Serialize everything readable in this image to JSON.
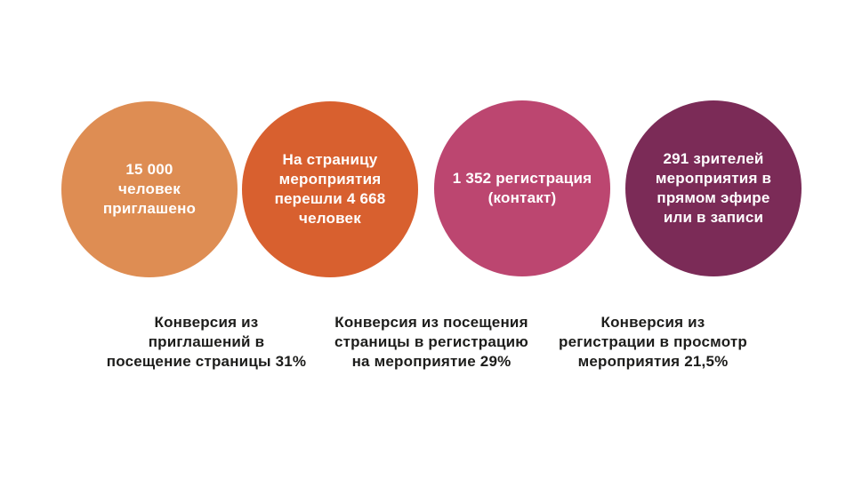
{
  "funnel": {
    "stages": [
      {
        "name": "invited",
        "label": "15 000\nчеловек\nприглашено",
        "value": 15000,
        "color": "#DE8D53"
      },
      {
        "name": "page-visits",
        "label": "На страницу\nмероприятия\nперешли 4 668\nчеловек",
        "value": 4668,
        "color": "#D8602F"
      },
      {
        "name": "registrations",
        "label": "1 352 регистрация\n(контакт)",
        "value": 1352,
        "color": "#BC4670"
      },
      {
        "name": "viewers",
        "label": "291 зрителей\nмероприятия в\nпрямом эфире\nили в записи",
        "value": 291,
        "color": "#7B2B57"
      }
    ],
    "conversions": [
      {
        "name": "invite-to-visit",
        "label": "Конверсия из\nприглашений в\nпосещение страницы 31%",
        "value_percent": "31%"
      },
      {
        "name": "visit-to-registration",
        "label": "Конверсия из посещения\nстраницы в регистрацию\nна мероприятие 29%",
        "value_percent": "29%"
      },
      {
        "name": "registration-to-view",
        "label": "Конверсия из\nрегистрации в просмотр\nмероприятия 21,5%",
        "value_percent": "21,5%"
      }
    ],
    "text_color": "#1d1d1b",
    "circle_text_color": "#ffffff",
    "background_color": "#ffffff"
  }
}
